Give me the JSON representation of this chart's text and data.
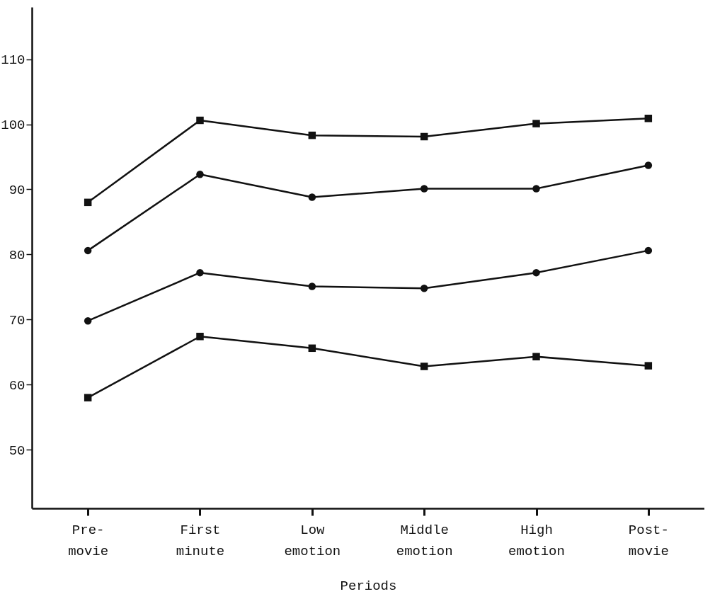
{
  "chart_data": {
    "type": "line",
    "xlabel": "Periods",
    "categories": [
      "Pre-\nmovie",
      "First\nminute",
      "Low\nemotion",
      "Middle\nemotion",
      "High\nemotion",
      "Post-\nmovie"
    ],
    "series": [
      {
        "color": "#111111",
        "marker": "square",
        "values": [
          88.0,
          100.6,
          98.3,
          98.1,
          100.1,
          100.9
        ]
      },
      {
        "color": "#111111",
        "marker": "circle",
        "values": [
          80.6,
          92.3,
          88.8,
          90.1,
          90.1,
          93.7
        ]
      },
      {
        "color": "#111111",
        "marker": "circle",
        "values": [
          69.8,
          77.2,
          75.1,
          74.8,
          77.2,
          80.6
        ]
      },
      {
        "color": "#111111",
        "marker": "square",
        "values": [
          58.0,
          67.4,
          65.6,
          62.8,
          64.3,
          62.9
        ]
      }
    ],
    "ylim": [
      41,
      118
    ],
    "yticks": [
      50,
      60,
      70,
      80,
      90,
      100,
      110
    ],
    "grid": false,
    "line_style": "solid"
  }
}
